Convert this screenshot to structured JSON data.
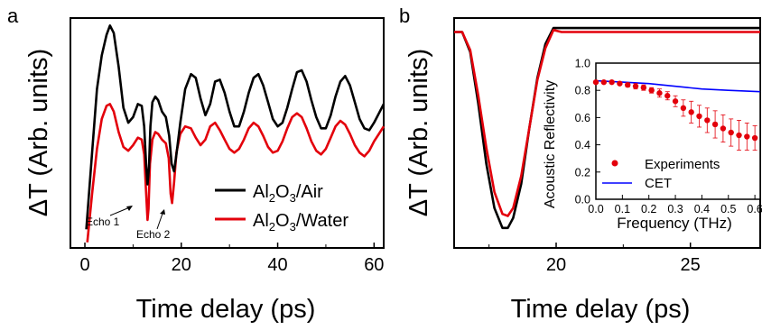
{
  "chart_data": [
    {
      "panel": "a",
      "type": "line",
      "xlabel": "Time delay (ps)",
      "ylabel": "ΔT (Arb. units)",
      "xlim": [
        -3,
        62
      ],
      "ylim": [
        -0.15,
        1.08
      ],
      "xticks": [
        0,
        20,
        40,
        60
      ],
      "yticks": [],
      "grid": false,
      "legend_position": "center-right",
      "series": [
        {
          "name": "Al2O3/Air",
          "color": "#000000",
          "x": [
            0.3,
            1.5,
            2.5,
            3.5,
            4.5,
            5.2,
            6.0,
            7.0,
            8.0,
            9.0,
            10.0,
            11.0,
            11.8,
            12.3,
            12.7,
            13.0,
            13.3,
            13.6,
            14.0,
            14.6,
            15.2,
            16.0,
            16.8,
            17.5,
            18.0,
            18.5,
            19.0,
            19.8,
            20.8,
            22.0,
            23.0,
            24.0,
            25.0,
            26.0,
            27.0,
            28.0,
            29.0,
            30.0,
            31.0,
            32.0,
            33.0,
            34.0,
            35.0,
            36.0,
            37.0,
            38.0,
            39.0,
            40.0,
            41.0,
            42.0,
            43.0,
            44.0,
            45.0,
            46.0,
            47.0,
            48.0,
            49.0,
            50.0,
            51.0,
            52.0,
            53.0,
            54.0,
            55.0,
            56.0,
            57.0,
            58.0,
            59.0,
            60.0,
            61.0,
            62.0
          ],
          "y": [
            -0.05,
            0.36,
            0.7,
            0.88,
            0.99,
            1.04,
            1.0,
            0.82,
            0.6,
            0.52,
            0.55,
            0.62,
            0.61,
            0.5,
            0.3,
            0.19,
            0.28,
            0.5,
            0.63,
            0.66,
            0.64,
            0.58,
            0.55,
            0.45,
            0.3,
            0.26,
            0.35,
            0.52,
            0.7,
            0.78,
            0.76,
            0.65,
            0.56,
            0.62,
            0.74,
            0.75,
            0.68,
            0.58,
            0.5,
            0.5,
            0.58,
            0.68,
            0.76,
            0.78,
            0.72,
            0.63,
            0.54,
            0.5,
            0.52,
            0.6,
            0.7,
            0.79,
            0.8,
            0.74,
            0.64,
            0.55,
            0.49,
            0.49,
            0.56,
            0.66,
            0.74,
            0.77,
            0.72,
            0.63,
            0.54,
            0.49,
            0.48,
            0.52,
            0.57,
            0.62
          ]
        },
        {
          "name": "Al2O3/Water",
          "color": "#e3000b",
          "x": [
            0.5,
            1.5,
            2.5,
            3.5,
            4.5,
            5.2,
            6.0,
            7.0,
            8.0,
            9.0,
            10.0,
            11.0,
            11.8,
            12.3,
            12.7,
            13.0,
            13.2,
            13.5,
            14.0,
            14.6,
            15.2,
            16.0,
            16.8,
            17.4,
            17.8,
            18.1,
            18.5,
            19.0,
            19.8,
            20.8,
            22.0,
            23.0,
            24.0,
            25.0,
            26.0,
            27.0,
            28.0,
            29.0,
            30.0,
            31.0,
            32.0,
            33.0,
            34.0,
            35.0,
            36.0,
            37.0,
            38.0,
            39.0,
            40.0,
            41.0,
            42.0,
            43.0,
            44.0,
            45.0,
            46.0,
            47.0,
            48.0,
            49.0,
            50.0,
            51.0,
            52.0,
            53.0,
            54.0,
            55.0,
            56.0,
            57.0,
            58.0,
            59.0,
            60.0,
            61.0,
            62.0
          ],
          "y": [
            -0.12,
            0.14,
            0.38,
            0.54,
            0.61,
            0.62,
            0.58,
            0.47,
            0.39,
            0.37,
            0.4,
            0.44,
            0.43,
            0.35,
            0.15,
            0.0,
            0.06,
            0.3,
            0.43,
            0.47,
            0.46,
            0.43,
            0.41,
            0.33,
            0.14,
            0.09,
            0.2,
            0.36,
            0.46,
            0.5,
            0.49,
            0.44,
            0.4,
            0.43,
            0.5,
            0.52,
            0.48,
            0.43,
            0.38,
            0.36,
            0.38,
            0.43,
            0.49,
            0.52,
            0.5,
            0.45,
            0.39,
            0.36,
            0.37,
            0.42,
            0.49,
            0.55,
            0.57,
            0.55,
            0.49,
            0.42,
            0.37,
            0.35,
            0.38,
            0.44,
            0.5,
            0.53,
            0.51,
            0.46,
            0.4,
            0.36,
            0.34,
            0.37,
            0.42,
            0.46,
            0.5
          ]
        }
      ],
      "legend_entries": [
        {
          "base": "Al",
          "sub1": "2",
          "mid": "O",
          "sub2": "3",
          "rest": "/Air",
          "color": "#000000"
        },
        {
          "base": "Al",
          "sub1": "2",
          "mid": "O",
          "sub2": "3",
          "rest": "/Water",
          "color": "#e3000b"
        }
      ],
      "annotations": [
        {
          "text": "Echo 1",
          "x": 12.8,
          "y": 0.0
        },
        {
          "text": "Echo 2",
          "x": 17.9,
          "y": 0.09
        }
      ]
    },
    {
      "panel": "b",
      "type": "line",
      "xlabel": "Time delay (ps)",
      "ylabel": "ΔT (Arb. units)",
      "xlim": [
        16.2,
        27.6
      ],
      "ylim": [
        -1.1,
        0.05
      ],
      "xticks": [
        20,
        25
      ],
      "yticks": [],
      "grid": false,
      "series": [
        {
          "name": "",
          "color": "#000000",
          "x": [
            16.2,
            16.5,
            16.8,
            17.1,
            17.4,
            17.7,
            18.0,
            18.2,
            18.4,
            18.7,
            19.0,
            19.3,
            19.6,
            19.9,
            20.2,
            27.6
          ],
          "y": [
            -0.02,
            -0.02,
            -0.12,
            -0.38,
            -0.68,
            -0.9,
            -1.0,
            -1.0,
            -0.95,
            -0.78,
            -0.5,
            -0.25,
            -0.08,
            0.0,
            0.0,
            0.0
          ]
        },
        {
          "name": "",
          "color": "#e3000b",
          "x": [
            16.2,
            16.5,
            16.8,
            17.1,
            17.4,
            17.7,
            18.0,
            18.2,
            18.4,
            18.7,
            19.0,
            19.3,
            19.6,
            19.9,
            20.2,
            27.6
          ],
          "y": [
            -0.02,
            -0.02,
            -0.11,
            -0.34,
            -0.6,
            -0.82,
            -0.93,
            -0.94,
            -0.9,
            -0.74,
            -0.5,
            -0.26,
            -0.1,
            -0.01,
            -0.02,
            -0.02
          ]
        }
      ],
      "inset": {
        "type": "scatter",
        "xlabel": "Frequency (THz)",
        "ylabel": "Acoustic Reflectivity",
        "xlim": [
          0.0,
          0.62
        ],
        "ylim": [
          0.0,
          1.0
        ],
        "xtick_labels": [
          "0.0",
          "0.1",
          "0.2",
          "0.3",
          "0.4",
          "0.5",
          "0.6"
        ],
        "ytick_labels": [
          "0.0",
          "0.2",
          "0.4",
          "0.6",
          "0.8",
          "1.0"
        ],
        "legend_entries": [
          "Experiments",
          "CET"
        ],
        "experiments": {
          "name": "Experiments",
          "color": "#e3000b",
          "x": [
            0.0,
            0.03,
            0.06,
            0.09,
            0.12,
            0.15,
            0.18,
            0.21,
            0.24,
            0.27,
            0.3,
            0.33,
            0.36,
            0.39,
            0.42,
            0.45,
            0.48,
            0.51,
            0.54,
            0.57,
            0.6
          ],
          "y": [
            0.86,
            0.86,
            0.86,
            0.85,
            0.84,
            0.83,
            0.82,
            0.8,
            0.78,
            0.76,
            0.72,
            0.67,
            0.64,
            0.61,
            0.58,
            0.55,
            0.52,
            0.49,
            0.47,
            0.46,
            0.45
          ],
          "error": [
            0.01,
            0.01,
            0.01,
            0.01,
            0.015,
            0.02,
            0.02,
            0.02,
            0.03,
            0.03,
            0.04,
            0.06,
            0.08,
            0.08,
            0.09,
            0.1,
            0.1,
            0.1,
            0.11,
            0.1,
            0.09
          ]
        },
        "cet": {
          "name": "CET",
          "color": "#0000ff",
          "x": [
            0.0,
            0.1,
            0.2,
            0.3,
            0.4,
            0.5,
            0.62
          ],
          "y": [
            0.87,
            0.86,
            0.85,
            0.83,
            0.81,
            0.8,
            0.79
          ]
        }
      }
    }
  ],
  "panel_labels": [
    "a",
    "b"
  ]
}
